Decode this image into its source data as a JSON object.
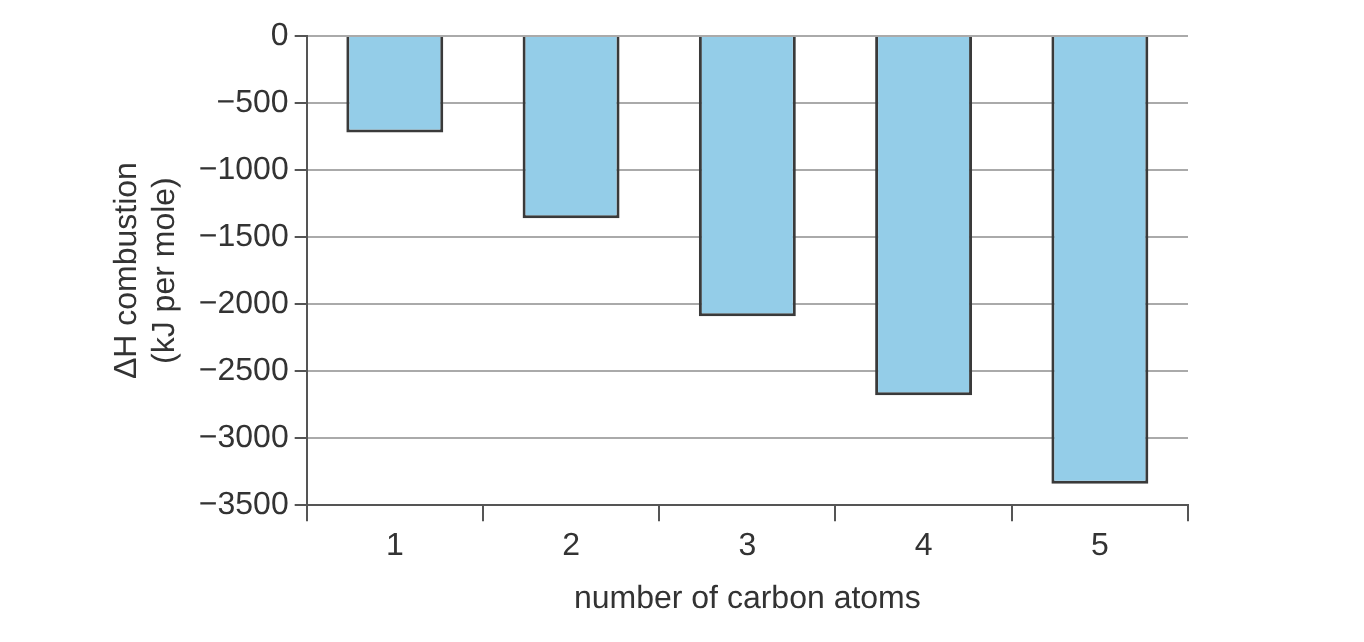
{
  "chart_data": {
    "type": "bar",
    "xlabel": "number of carbon atoms",
    "ylabel": "ΔH combustion\n(kJ per mole)",
    "categories": [
      "1",
      "2",
      "3",
      "4",
      "5"
    ],
    "values": [
      -720,
      -1360,
      -2090,
      -2680,
      -3340
    ],
    "color": "#94cde8",
    "ylim": [
      -3500,
      0
    ],
    "yticks": [
      0,
      -500,
      -1000,
      -1500,
      -2000,
      -2500,
      -3000,
      -3500
    ],
    "grid": "y",
    "legend": false
  }
}
